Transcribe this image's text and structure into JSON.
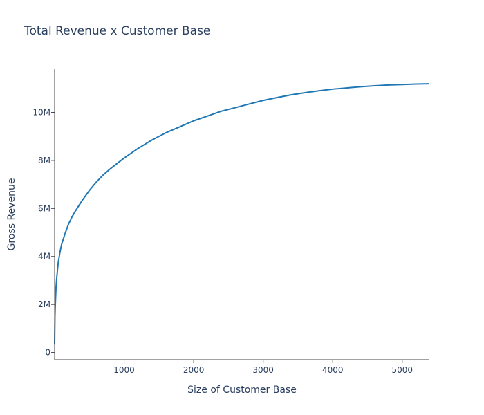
{
  "chart_data": {
    "type": "line",
    "title": "Total Revenue x Customer Base",
    "xlabel": "Size of Customer Base",
    "ylabel": "Gross Revenue",
    "xlim": [
      0,
      5380
    ],
    "ylim": [
      -300000,
      11800000
    ],
    "grid": false,
    "x_ticks": [
      {
        "value": 1000,
        "label": "1000"
      },
      {
        "value": 2000,
        "label": "2000"
      },
      {
        "value": 3000,
        "label": "3000"
      },
      {
        "value": 4000,
        "label": "4000"
      },
      {
        "value": 5000,
        "label": "5000"
      }
    ],
    "y_ticks": [
      {
        "value": 0,
        "label": "0"
      },
      {
        "value": 2000000,
        "label": "2M"
      },
      {
        "value": 4000000,
        "label": "4M"
      },
      {
        "value": 6000000,
        "label": "6M"
      },
      {
        "value": 8000000,
        "label": "8M"
      },
      {
        "value": 10000000,
        "label": "10M"
      }
    ],
    "series": [
      {
        "color": "#1f77b4",
        "x": [
          0,
          5,
          10,
          20,
          30,
          50,
          75,
          100,
          150,
          200,
          250,
          300,
          400,
          500,
          600,
          700,
          800,
          1000,
          1200,
          1400,
          1600,
          1800,
          2000,
          2200,
          2400,
          2600,
          2800,
          3000,
          3200,
          3400,
          3600,
          3800,
          4000,
          4200,
          4400,
          4600,
          4800,
          5000,
          5200,
          5380
        ],
        "y": [
          350000,
          1500000,
          2000000,
          2700000,
          3100000,
          3700000,
          4150000,
          4500000,
          4950000,
          5350000,
          5650000,
          5900000,
          6350000,
          6750000,
          7100000,
          7400000,
          7650000,
          8100000,
          8500000,
          8850000,
          9150000,
          9400000,
          9650000,
          9850000,
          10050000,
          10200000,
          10350000,
          10500000,
          10620000,
          10730000,
          10820000,
          10900000,
          10970000,
          11020000,
          11070000,
          11110000,
          11140000,
          11160000,
          11180000,
          11190000
        ]
      }
    ]
  }
}
